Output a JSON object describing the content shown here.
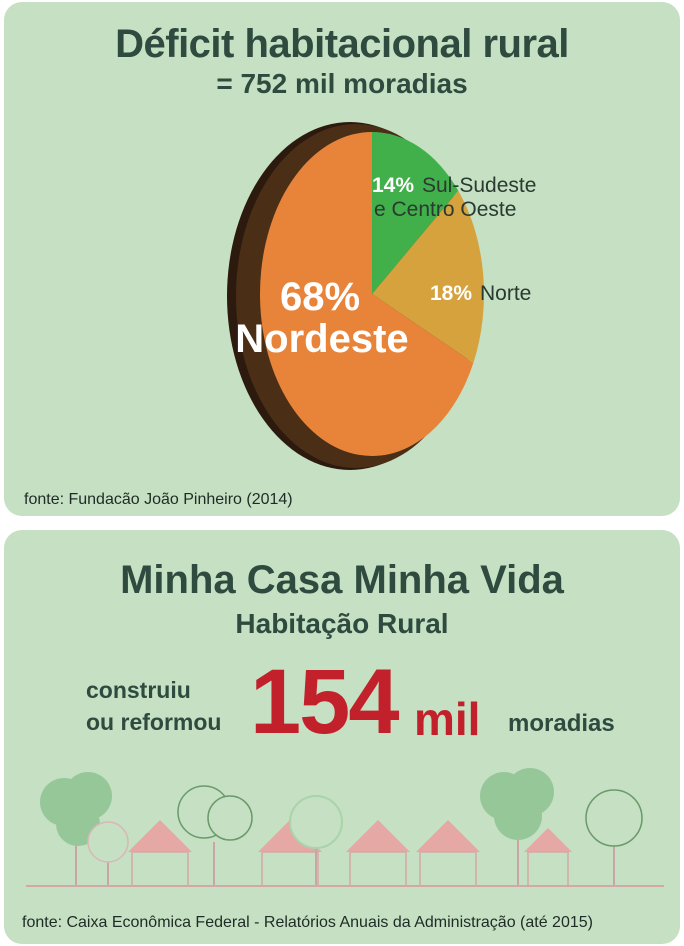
{
  "deficit": {
    "title": "Déficit habitacional rural",
    "subtitle": "= 752 mil moradias",
    "source": "fonte: Fundacão João Pinheiro (2014)"
  },
  "chart_data": {
    "type": "pie",
    "title": "Déficit habitacional rural",
    "subtitle": "= 752 mil moradias",
    "slices": [
      {
        "pct_label": "68%",
        "label": "Nordeste",
        "value": 68,
        "color": "#e8843a"
      },
      {
        "pct_label": "14%",
        "label_line1": "Sul-Sudeste",
        "label_line2": "e Centro Oeste",
        "value": 14,
        "color": "#41b04b"
      },
      {
        "pct_label": "18%",
        "label": "Norte",
        "value": 18,
        "color": "#d5a23e"
      }
    ]
  },
  "mcmv": {
    "title": "Minha Casa Minha Vida",
    "subtitle": "Habitação Rural",
    "stat_line1": "construiu",
    "stat_line2": "ou reformou",
    "stat_number": "154",
    "stat_unit": "mil",
    "stat_after": "moradias",
    "source": "fonte: Caixa Econômica Federal - Relatórios Anuais da Administração (até 2015)"
  },
  "colors": {
    "panel_bg": "#c5e0c2",
    "title_text": "#2f4a3f",
    "highlight_red": "#c2202b",
    "tree_green": "#96c799",
    "house_roof": "#e6a8a4"
  }
}
